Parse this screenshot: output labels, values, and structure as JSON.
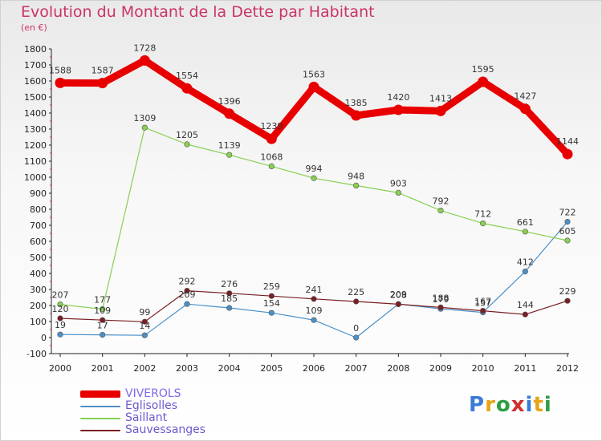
{
  "title": "Evolution du Montant de la Dette par Habitant",
  "unit": "(en €)",
  "logo": "Proxiti",
  "chart_data": {
    "type": "line",
    "title": "Evolution du Montant de la Dette par Habitant",
    "ylabel": "(en €)",
    "xlabel": "",
    "ylim": [
      -100,
      1800
    ],
    "y_ticks": [
      -100,
      0,
      100,
      200,
      300,
      400,
      500,
      600,
      700,
      800,
      900,
      1000,
      1100,
      1200,
      1300,
      1400,
      1500,
      1600,
      1700,
      1800
    ],
    "grid": false,
    "legend_position": "bottom-left",
    "x": [
      "2000",
      "2001",
      "2002",
      "2003",
      "2004",
      "2005",
      "2006",
      "2007",
      "2008",
      "2009",
      "2010",
      "2011",
      "2012"
    ],
    "series": [
      {
        "name": "VIVEROLS",
        "color": "#e80000",
        "values": [
          1588,
          1587,
          1728,
          1554,
          1396,
          1239,
          1563,
          1385,
          1420,
          1413,
          1595,
          1427,
          1144
        ]
      },
      {
        "name": "Eglisolles",
        "color": "#4a90c8",
        "values": [
          19,
          17,
          14,
          209,
          185,
          154,
          109,
          0,
          209,
          179,
          157,
          412,
          722
        ]
      },
      {
        "name": "Saillant",
        "color": "#88d050",
        "values": [
          207,
          177,
          1309,
          1205,
          1139,
          1068,
          994,
          948,
          903,
          792,
          712,
          661,
          605
        ]
      },
      {
        "name": "Sauvessanges",
        "color": "#7a1e22",
        "values": [
          120,
          109,
          99,
          292,
          276,
          259,
          241,
          225,
          208,
          188,
          167,
          144,
          229
        ]
      }
    ]
  }
}
